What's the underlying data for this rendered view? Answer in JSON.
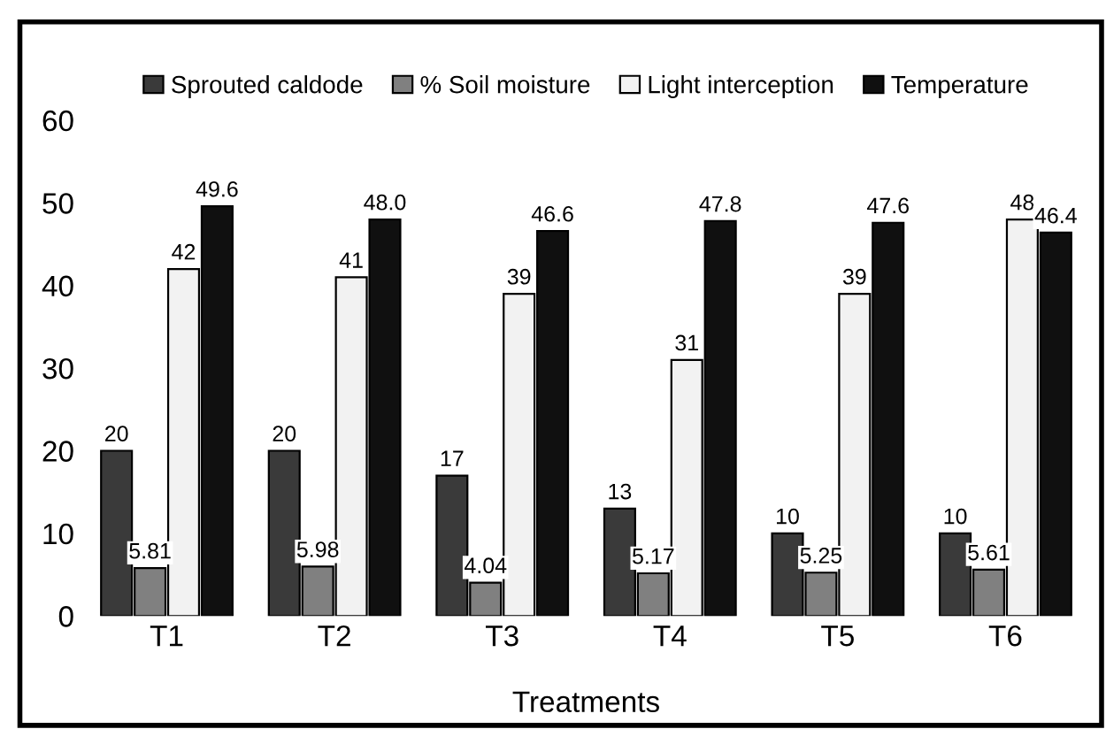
{
  "chart_data": {
    "type": "bar",
    "xlabel": "Treatments",
    "categories": [
      "T1",
      "T2",
      "T3",
      "T4",
      "T5",
      "T6"
    ],
    "series": [
      {
        "name": "Sprouted caldode",
        "color": "#3a3a3a",
        "values": [
          20,
          20,
          17,
          13,
          10,
          10
        ]
      },
      {
        "name": "% Soil moisture",
        "color": "#808080",
        "values": [
          5.81,
          5.98,
          4.04,
          5.17,
          5.25,
          5.61
        ]
      },
      {
        "name": "Light interception",
        "color": "#f2f2f2",
        "values": [
          42,
          41,
          39,
          31,
          39,
          48
        ]
      },
      {
        "name": "Temperature",
        "color": "#101010",
        "values": [
          49.6,
          48.0,
          46.6,
          47.8,
          47.6,
          46.4
        ]
      }
    ],
    "value_labels": [
      [
        "20",
        "20",
        "17",
        "13",
        "10",
        "10"
      ],
      [
        "5.81",
        "5.98",
        "4.04",
        "5.17",
        "5.25",
        "5.61"
      ],
      [
        "42",
        "41",
        "39",
        "31",
        "39",
        "48"
      ],
      [
        "49.6",
        "48.0",
        "46.6",
        "47.8",
        "47.6",
        "46.4"
      ]
    ],
    "ylim": [
      0,
      60
    ],
    "yticks": [
      0,
      10,
      20,
      30,
      40,
      50,
      60
    ],
    "grid": false,
    "legend": "top"
  }
}
